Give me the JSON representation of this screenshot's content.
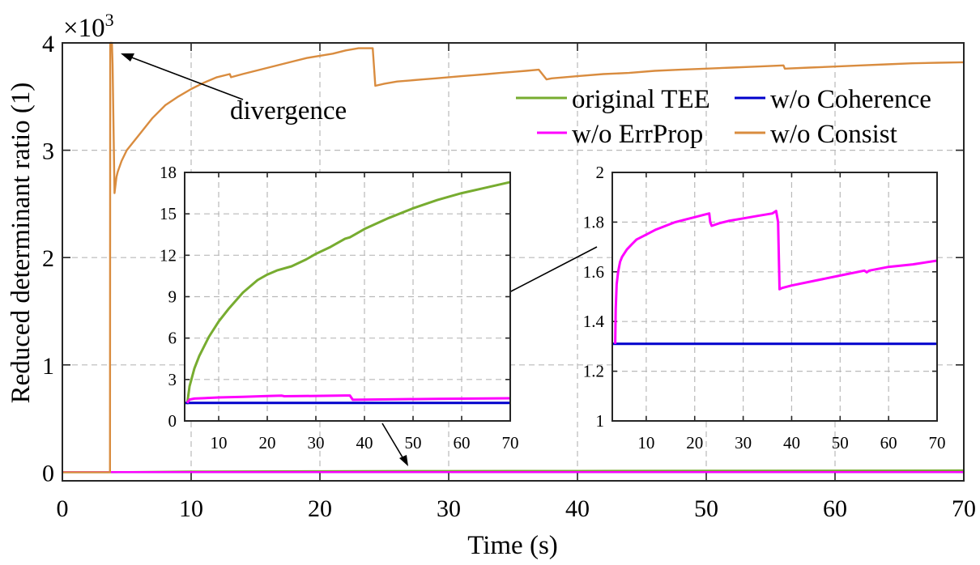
{
  "colors": {
    "original_tee": "#77ac30",
    "wo_coherence": "#0000cc",
    "wo_errprop": "#ff00ff",
    "wo_consist": "#d98c3f"
  },
  "chart_data": [
    {
      "id": "main",
      "type": "line",
      "xlabel": "Time (s)",
      "ylabel": "Reduced determinant ratio (1)",
      "exponent_label": "×10",
      "exponent_power": "3",
      "xlim": [
        0,
        70
      ],
      "ylim": [
        -0.08,
        4
      ],
      "y_scale_note": "y values in thousands",
      "xticks": [
        0,
        10,
        20,
        30,
        40,
        50,
        60,
        70
      ],
      "xtick_labels": [
        "0",
        "10",
        "20",
        "30",
        "40",
        "50",
        "60",
        "70"
      ],
      "yticks": [
        0,
        1,
        2,
        3,
        4
      ],
      "ytick_labels": [
        "0",
        "1",
        "2",
        "3",
        "4"
      ],
      "grid": true,
      "annotation": "divergence",
      "legend": [
        {
          "name": "original TEE",
          "key": "original_tee"
        },
        {
          "name": "w/o Coherence",
          "key": "wo_coherence"
        },
        {
          "name": "w/o ErrProp",
          "key": "wo_errprop"
        },
        {
          "name": "w/o Consist",
          "key": "wo_consist"
        }
      ],
      "series": [
        {
          "name": "original TEE",
          "key": "original_tee",
          "x": [
            0,
            3.5,
            10,
            20,
            30,
            40,
            50,
            60,
            70
          ],
          "y": [
            0,
            0,
            0.007,
            0.01,
            0.012,
            0.013,
            0.015,
            0.016,
            0.017
          ]
        },
        {
          "name": "w/o Coherence",
          "key": "wo_coherence",
          "x": [
            0,
            70
          ],
          "y": [
            0.0013,
            0.0013
          ]
        },
        {
          "name": "w/o ErrProp",
          "key": "wo_errprop",
          "x": [
            0,
            3.5,
            70
          ],
          "y": [
            0.0016,
            0.0016,
            0.0016
          ]
        },
        {
          "name": "w/o Consist",
          "key": "wo_consist",
          "x": [
            0,
            3.7,
            3.72,
            3.85,
            3.9,
            4.05,
            4.2,
            4.3,
            4.6,
            5,
            6,
            7,
            8,
            9,
            10,
            11,
            12,
            13,
            13.1,
            14,
            15,
            16,
            17,
            18,
            19,
            20,
            21,
            22,
            23,
            24.1,
            24.3,
            25,
            26,
            27,
            28,
            29,
            30,
            31,
            32,
            33,
            34,
            35,
            36,
            37,
            37.6,
            38,
            39,
            40,
            42,
            44,
            46,
            48,
            50,
            52,
            54,
            56,
            56.1,
            58,
            60,
            62,
            64,
            66,
            68,
            70
          ],
          "y": [
            0,
            0,
            4.0,
            4.0,
            3.8,
            2.6,
            2.75,
            2.8,
            2.9,
            3.0,
            3.15,
            3.3,
            3.42,
            3.5,
            3.57,
            3.63,
            3.68,
            3.71,
            3.68,
            3.71,
            3.74,
            3.77,
            3.8,
            3.83,
            3.86,
            3.88,
            3.9,
            3.93,
            3.95,
            3.95,
            3.6,
            3.62,
            3.64,
            3.65,
            3.66,
            3.67,
            3.68,
            3.69,
            3.7,
            3.71,
            3.72,
            3.73,
            3.74,
            3.75,
            3.66,
            3.67,
            3.68,
            3.69,
            3.71,
            3.72,
            3.74,
            3.75,
            3.76,
            3.77,
            3.78,
            3.79,
            3.76,
            3.77,
            3.78,
            3.79,
            3.8,
            3.81,
            3.815,
            3.82
          ]
        }
      ]
    },
    {
      "id": "inset_left",
      "type": "line",
      "xlim": [
        3,
        70
      ],
      "ylim": [
        0,
        18
      ],
      "xticks": [
        10,
        20,
        30,
        40,
        50,
        60,
        70
      ],
      "xtick_labels": [
        "10",
        "20",
        "30",
        "40",
        "50",
        "60",
        "70"
      ],
      "yticks": [
        0,
        3,
        6,
        9,
        12,
        15,
        18
      ],
      "ytick_labels": [
        "0",
        "3",
        "6",
        "9",
        "12",
        "15",
        "18"
      ],
      "grid": true,
      "series": [
        {
          "name": "original TEE",
          "key": "original_tee",
          "x": [
            3.5,
            4,
            5,
            6,
            8,
            10,
            12,
            15,
            18,
            20,
            22,
            25,
            28,
            30,
            33,
            35,
            36,
            37,
            38,
            40,
            45,
            50,
            55,
            60,
            65,
            70
          ],
          "y": [
            1.2,
            2.5,
            3.8,
            4.7,
            6.1,
            7.2,
            8.1,
            9.3,
            10.2,
            10.6,
            10.9,
            11.2,
            11.7,
            12.1,
            12.6,
            13.0,
            13.2,
            13.3,
            13.5,
            13.9,
            14.7,
            15.4,
            16.0,
            16.5,
            16.9,
            17.3
          ]
        },
        {
          "name": "w/o Coherence",
          "key": "wo_coherence",
          "x": [
            3,
            70
          ],
          "y": [
            1.3,
            1.3
          ]
        },
        {
          "name": "w/o ErrProp",
          "key": "wo_errprop",
          "x": [
            3.5,
            4,
            5,
            10,
            15,
            20,
            23,
            23.5,
            30,
            36,
            37,
            37.6,
            45,
            55,
            70
          ],
          "y": [
            1.3,
            1.55,
            1.62,
            1.7,
            1.75,
            1.8,
            1.83,
            1.79,
            1.81,
            1.84,
            1.84,
            1.53,
            1.56,
            1.6,
            1.64
          ]
        }
      ]
    },
    {
      "id": "inset_right",
      "type": "line",
      "xlim": [
        3,
        70
      ],
      "ylim": [
        1,
        2
      ],
      "xticks": [
        10,
        20,
        30,
        40,
        50,
        60,
        70
      ],
      "xtick_labels": [
        "10",
        "20",
        "30",
        "40",
        "50",
        "60",
        "70"
      ],
      "yticks": [
        1,
        1.2,
        1.4,
        1.6,
        1.8,
        2
      ],
      "ytick_labels": [
        "1",
        "1.2",
        "1.4",
        "1.6",
        "1.8",
        "2"
      ],
      "grid": true,
      "series": [
        {
          "name": "w/o Coherence",
          "key": "wo_coherence",
          "x": [
            3,
            70
          ],
          "y": [
            1.31,
            1.31
          ]
        },
        {
          "name": "w/o ErrProp",
          "key": "wo_errprop",
          "x": [
            3.6,
            3.7,
            3.9,
            4.2,
            4.6,
            5,
            6,
            7,
            8,
            10,
            12,
            14,
            16,
            18,
            20,
            22,
            23,
            23.2,
            23.5,
            25,
            27,
            30,
            33,
            36,
            36.8,
            37.2,
            37.5,
            38,
            40,
            45,
            50,
            55,
            55.5,
            56,
            60,
            65,
            70
          ],
          "y": [
            1.31,
            1.45,
            1.55,
            1.6,
            1.64,
            1.66,
            1.69,
            1.71,
            1.73,
            1.75,
            1.77,
            1.785,
            1.8,
            1.81,
            1.82,
            1.83,
            1.835,
            1.8,
            1.785,
            1.795,
            1.805,
            1.815,
            1.825,
            1.835,
            1.845,
            1.8,
            1.53,
            1.535,
            1.545,
            1.565,
            1.585,
            1.605,
            1.598,
            1.605,
            1.62,
            1.63,
            1.645
          ]
        }
      ]
    }
  ]
}
